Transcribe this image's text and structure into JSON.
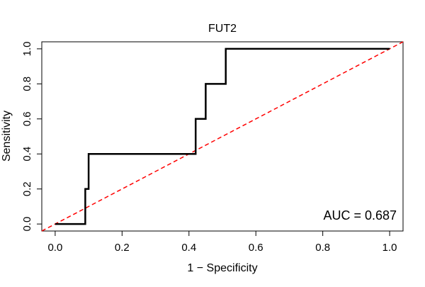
{
  "chart_data": {
    "type": "line",
    "title": "FUT2",
    "xlabel": "1 − Specificity",
    "ylabel": "Sensitivity",
    "xlim": [
      -0.04,
      1.04
    ],
    "ylim": [
      -0.04,
      1.04
    ],
    "x_ticks": [
      {
        "value": 0.0,
        "label": "0.0"
      },
      {
        "value": 0.2,
        "label": "0.2"
      },
      {
        "value": 0.4,
        "label": "0.4"
      },
      {
        "value": 0.6,
        "label": "0.6"
      },
      {
        "value": 0.8,
        "label": "0.8"
      },
      {
        "value": 1.0,
        "label": "1.0"
      }
    ],
    "y_ticks": [
      {
        "value": 0.0,
        "label": "0.0"
      },
      {
        "value": 0.2,
        "label": "0.2"
      },
      {
        "value": 0.4,
        "label": "0.4"
      },
      {
        "value": 0.6,
        "label": "0.6"
      },
      {
        "value": 0.8,
        "label": "0.8"
      },
      {
        "value": 1.0,
        "label": "1.0"
      }
    ],
    "grid": false,
    "series": [
      {
        "color": "#000000",
        "style": "solid",
        "x": [
          0.0,
          0.09,
          0.09,
          0.1,
          0.1,
          0.42,
          0.42,
          0.45,
          0.45,
          0.51,
          0.51,
          1.0
        ],
        "y": [
          0.0,
          0.0,
          0.2,
          0.2,
          0.4,
          0.4,
          0.6,
          0.6,
          0.8,
          0.8,
          1.0,
          1.0
        ]
      }
    ],
    "reference_line": {
      "color": "#ff0000",
      "style": "dashed",
      "x": [
        -0.04,
        1.04
      ],
      "y": [
        -0.04,
        1.04
      ]
    },
    "annotation": "AUC = 0.687"
  }
}
